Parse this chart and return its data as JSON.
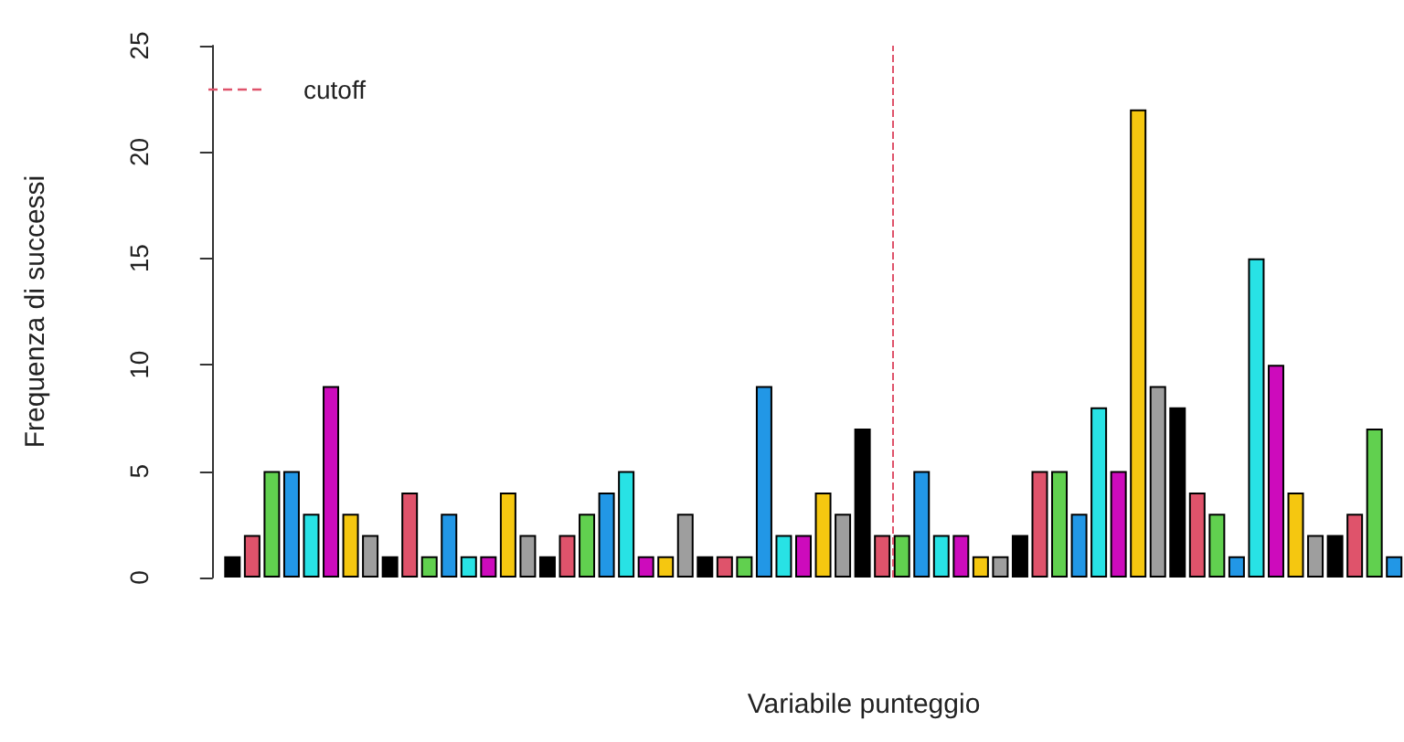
{
  "chart_data": {
    "type": "bar",
    "categories": [
      null,
      null,
      null,
      null,
      null,
      null,
      null,
      null,
      null,
      null,
      null,
      null,
      null,
      null,
      null,
      null,
      null,
      null,
      null,
      null,
      null,
      null,
      null,
      null,
      null,
      null,
      null,
      null,
      null,
      null,
      null,
      null,
      null,
      null,
      null,
      null,
      null,
      null,
      null,
      null,
      null,
      null,
      null,
      null,
      null,
      null,
      null,
      null,
      null,
      null,
      null,
      null,
      null,
      null,
      null,
      null,
      null,
      null,
      null,
      null
    ],
    "values": [
      1,
      2,
      5,
      5,
      3,
      9,
      3,
      2,
      1,
      4,
      1,
      3,
      1,
      1,
      4,
      2,
      1,
      2,
      3,
      4,
      5,
      1,
      1,
      3,
      1,
      1,
      1,
      9,
      2,
      2,
      4,
      3,
      7,
      2,
      2,
      5,
      2,
      2,
      1,
      1,
      2,
      5,
      5,
      3,
      8,
      5,
      22,
      9,
      8,
      4,
      3,
      1,
      15,
      10,
      4,
      2,
      2,
      3,
      7,
      1
    ],
    "colors": [
      "#000000",
      "#df536b",
      "#61d04f",
      "#2297e6",
      "#28e2e5",
      "#cd0bbc",
      "#f5c710",
      "#9e9e9e",
      "#000000",
      "#df536b",
      "#61d04f",
      "#2297e6",
      "#28e2e5",
      "#cd0bbc",
      "#f5c710",
      "#9e9e9e",
      "#000000",
      "#df536b",
      "#61d04f",
      "#2297e6",
      "#28e2e5",
      "#cd0bbc",
      "#f5c710",
      "#9e9e9e",
      "#000000",
      "#df536b",
      "#61d04f",
      "#2297e6",
      "#28e2e5",
      "#cd0bbc",
      "#f5c710",
      "#9e9e9e",
      "#000000",
      "#df536b",
      "#61d04f",
      "#2297e6",
      "#28e2e5",
      "#cd0bbc",
      "#f5c710",
      "#9e9e9e",
      "#000000",
      "#df536b",
      "#61d04f",
      "#2297e6",
      "#28e2e5",
      "#cd0bbc",
      "#f5c710",
      "#9e9e9e",
      "#000000",
      "#df536b",
      "#61d04f",
      "#2297e6",
      "#28e2e5",
      "#cd0bbc",
      "#f5c710",
      "#9e9e9e",
      "#000000",
      "#df536b",
      "#61d04f",
      "#2297e6"
    ],
    "ylim": [
      0,
      25
    ],
    "yticks": [
      0,
      5,
      10,
      15,
      20,
      25
    ],
    "xlabel": "Variabile punteggio",
    "ylabel": "Frequenza di successi",
    "tick_labels": "y",
    "grid": false,
    "annotations": [
      "cutoff"
    ]
  }
}
